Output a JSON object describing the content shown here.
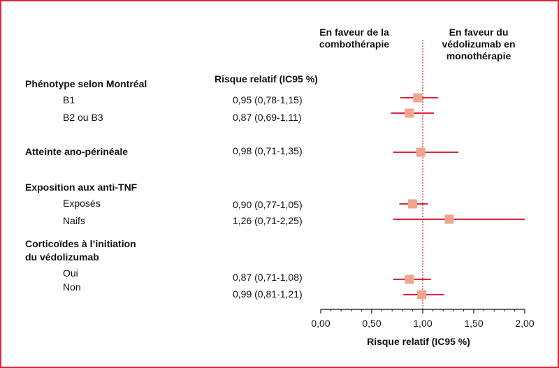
{
  "chart_data": {
    "type": "forest",
    "header_left": [
      "En faveur de la",
      "combothérapie"
    ],
    "header_right": [
      "En faveur du",
      "védolizumab en",
      "monothérapie"
    ],
    "column_header": "Risque relatif (IC95 %)",
    "xlabel": "Risque relatif (IC95 %)",
    "xlim": [
      0,
      2
    ],
    "reference_line": 1,
    "ticks": [
      {
        "value": 0,
        "label": "0,00"
      },
      {
        "value": 0.5,
        "label": "0,50"
      },
      {
        "value": 1,
        "label": "1,00"
      },
      {
        "value": 1.5,
        "label": "1,50"
      },
      {
        "value": 2,
        "label": "2,00"
      }
    ],
    "marker_color": "#f2a58e",
    "line_color": "#d9283c",
    "categories": [
      {
        "label": [
          "Phénotype selon Montréal"
        ]
      },
      {
        "label": [
          "Atteinte ano-périnéale"
        ]
      },
      {
        "label": [
          "Exposition aux anti-TNF"
        ]
      },
      {
        "label": [
          "Corticoïdes à l’initiation",
          "du védolizumab"
        ]
      }
    ],
    "rows": [
      {
        "label": "B1",
        "rr_text": "0,95 (0,78-1,15)",
        "rr": 0.95,
        "low": 0.78,
        "high": 1.15
      },
      {
        "label": "B2 ou B3",
        "rr_text": "0,87 (0,69-1,11)",
        "rr": 0.87,
        "low": 0.69,
        "high": 1.11
      },
      {
        "label": "",
        "rr_text": "0,98 (0,71-1,35)",
        "rr": 0.98,
        "low": 0.71,
        "high": 1.35
      },
      {
        "label": "Exposés",
        "rr_text": "0,90 (0,77-1,05)",
        "rr": 0.9,
        "low": 0.77,
        "high": 1.05
      },
      {
        "label": "Naifs",
        "rr_text": "1,26 (0,71-2,25)",
        "rr": 1.26,
        "low": 0.71,
        "high": 2.25
      },
      {
        "label": "Oui",
        "rr_text": "0,87 (0,71-1,08)",
        "rr": 0.87,
        "low": 0.71,
        "high": 1.08
      },
      {
        "label": "Non",
        "rr_text": "0,99 (0,81-1,21)",
        "rr": 0.99,
        "low": 0.81,
        "high": 1.21
      }
    ]
  }
}
